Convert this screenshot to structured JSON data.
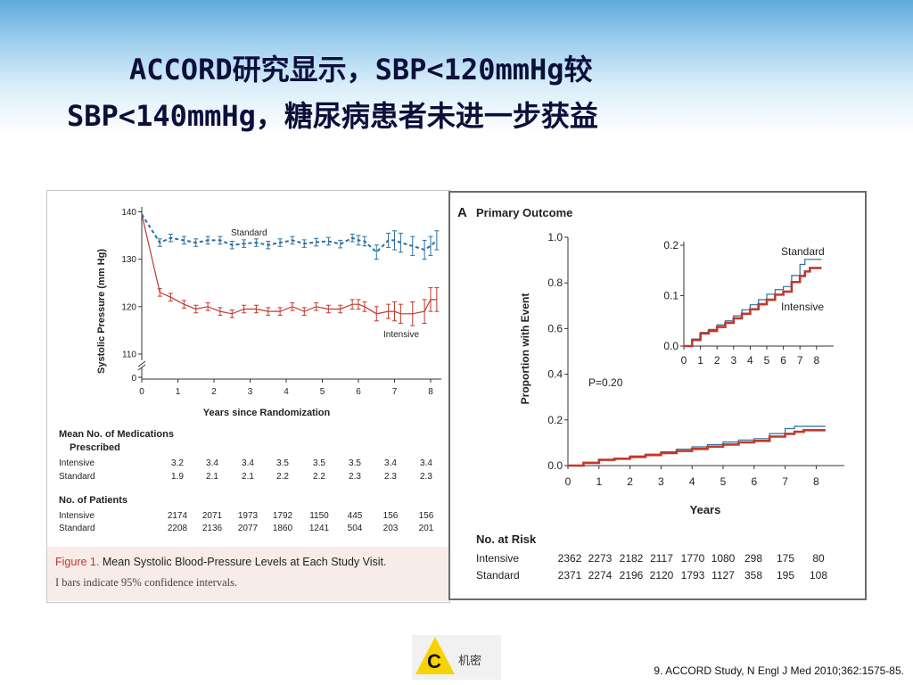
{
  "slide": {
    "title_line1": "ACCORD研究显示，SBP<120mmHg较",
    "title_line2": "SBP<140mmHg，糖尿病患者未进一步获益",
    "reference": "9. ACCORD Study, N Engl J Med 2010;362:1575-85.",
    "logo_text": "机密",
    "logo_letter": "C",
    "colors": {
      "title": "#0b0f3a",
      "header_blue": "#5fa9dc",
      "intensive": "#c0392b",
      "standard": "#2b6f9e"
    }
  },
  "figure1": {
    "caption_label": "Figure 1.",
    "caption_title": "Mean Systolic Blood-Pressure Levels at Each Study Visit.",
    "caption_note": "I bars indicate 95% confidence intervals.",
    "meds_header_1": "Mean No. of Medications",
    "meds_header_2": "Prescribed",
    "patients_header": "No. of Patients",
    "row_intensive": "Intensive",
    "row_standard": "Standard",
    "meds": {
      "intensive": [
        "3.2",
        "3.4",
        "3.4",
        "3.5",
        "3.5",
        "3.5",
        "3.4",
        "3.4"
      ],
      "standard": [
        "1.9",
        "2.1",
        "2.1",
        "2.2",
        "2.2",
        "2.3",
        "2.3",
        "2.3"
      ]
    },
    "patients": {
      "intensive": [
        "2174",
        "2071",
        "1973",
        "1792",
        "1150",
        "445",
        "156",
        "156"
      ],
      "standard": [
        "2208",
        "2136",
        "2077",
        "1860",
        "1241",
        "504",
        "203",
        "201"
      ]
    }
  },
  "panelA": {
    "label": "A",
    "title": "Primary Outcome",
    "pvalue": "P=0.20",
    "risk_header": "No. at Risk",
    "row_intensive": "Intensive",
    "row_standard": "Standard",
    "risk": {
      "intensive": [
        "2362",
        "2273",
        "2182",
        "2117",
        "1770",
        "1080",
        "298",
        "175",
        "80"
      ],
      "standard": [
        "2371",
        "2274",
        "2196",
        "2120",
        "1793",
        "1127",
        "358",
        "195",
        "108"
      ]
    }
  },
  "chart_data": [
    {
      "type": "line",
      "xlabel": "Years since Randomization",
      "ylabel": "Systolic Pressure (mm Hg)",
      "xlim": [
        0,
        8.3
      ],
      "ylim": [
        110,
        140
      ],
      "x_ticks": [
        "0",
        "1",
        "2",
        "3",
        "4",
        "5",
        "6",
        "7",
        "8"
      ],
      "y_ticks": [
        "110",
        "120",
        "130",
        "140"
      ],
      "y_break_tick": "0",
      "x": [
        0,
        0.5,
        0.8,
        1.17,
        1.5,
        1.83,
        2.17,
        2.5,
        2.83,
        3.17,
        3.5,
        3.83,
        4.17,
        4.5,
        4.83,
        5.17,
        5.5,
        5.83,
        6,
        6.17,
        6.5,
        6.83,
        7,
        7.17,
        7.5,
        7.83,
        8,
        8.17
      ],
      "series": [
        {
          "name": "Standard",
          "style": "dashed",
          "values": [
            139.5,
            133.5,
            134.5,
            134,
            133.5,
            134,
            134,
            133,
            133.3,
            133.5,
            133,
            133.5,
            134,
            133.3,
            133.6,
            133.8,
            133.2,
            134.5,
            134,
            133.8,
            131.5,
            134,
            134,
            133.5,
            132.8,
            132,
            132.8,
            134
          ],
          "ci": [
            1,
            0.8,
            0.8,
            0.8,
            0.8,
            0.8,
            0.8,
            0.8,
            0.8,
            0.8,
            0.8,
            0.8,
            0.8,
            0.8,
            0.8,
            0.8,
            0.8,
            0.8,
            1,
            1,
            1.5,
            1.5,
            2,
            2,
            2,
            2,
            2,
            2
          ]
        },
        {
          "name": "Intensive",
          "style": "solid",
          "values": [
            139.5,
            123,
            122,
            120.5,
            119.5,
            120,
            119,
            118.5,
            119.5,
            119.5,
            119,
            119,
            120,
            119,
            120,
            119.5,
            119.5,
            120.5,
            120.5,
            120,
            118.5,
            119,
            119,
            118.5,
            118.5,
            119,
            121.5,
            121.5
          ],
          "ci": [
            1,
            0.8,
            0.8,
            0.8,
            0.8,
            0.8,
            0.8,
            0.8,
            0.8,
            0.8,
            0.8,
            0.8,
            0.8,
            0.8,
            0.8,
            0.8,
            0.8,
            1,
            1,
            1,
            1.5,
            1.5,
            2,
            2,
            2.5,
            2.5,
            2.5,
            2.5
          ]
        }
      ]
    },
    {
      "type": "line",
      "title": "Primary Outcome",
      "xlabel": "Years",
      "ylabel": "Proportion with Event",
      "xlim": [
        0,
        8.3
      ],
      "ylim": [
        0,
        1.0
      ],
      "x_ticks": [
        "0",
        "1",
        "2",
        "3",
        "4",
        "5",
        "6",
        "7",
        "8"
      ],
      "y_ticks": [
        "0.0",
        "0.2",
        "0.4",
        "0.6",
        "0.8",
        "1.0"
      ],
      "step": true,
      "x": [
        0,
        0.5,
        1,
        1.5,
        2,
        2.5,
        3,
        3.5,
        4,
        4.5,
        5,
        5.5,
        6,
        6.5,
        7,
        7.3,
        7.6,
        8,
        8.3
      ],
      "series": [
        {
          "name": "Standard",
          "values": [
            0,
            0.014,
            0.027,
            0.033,
            0.042,
            0.05,
            0.06,
            0.072,
            0.082,
            0.092,
            0.103,
            0.112,
            0.118,
            0.14,
            0.162,
            0.172,
            0.172,
            0.172,
            0.172
          ]
        },
        {
          "name": "Intensive",
          "values": [
            0,
            0.012,
            0.025,
            0.03,
            0.038,
            0.046,
            0.055,
            0.064,
            0.073,
            0.083,
            0.092,
            0.102,
            0.108,
            0.127,
            0.139,
            0.148,
            0.155,
            0.155,
            0.155
          ]
        }
      ],
      "inset": {
        "xlim": [
          0,
          8.3
        ],
        "ylim": [
          0,
          0.2
        ],
        "x_ticks": [
          "0",
          "1",
          "2",
          "3",
          "4",
          "5",
          "6",
          "7",
          "8"
        ],
        "y_ticks": [
          "0.0",
          "0.1",
          "0.2"
        ],
        "label_standard": "Standard",
        "label_intensive": "Intensive"
      }
    }
  ]
}
